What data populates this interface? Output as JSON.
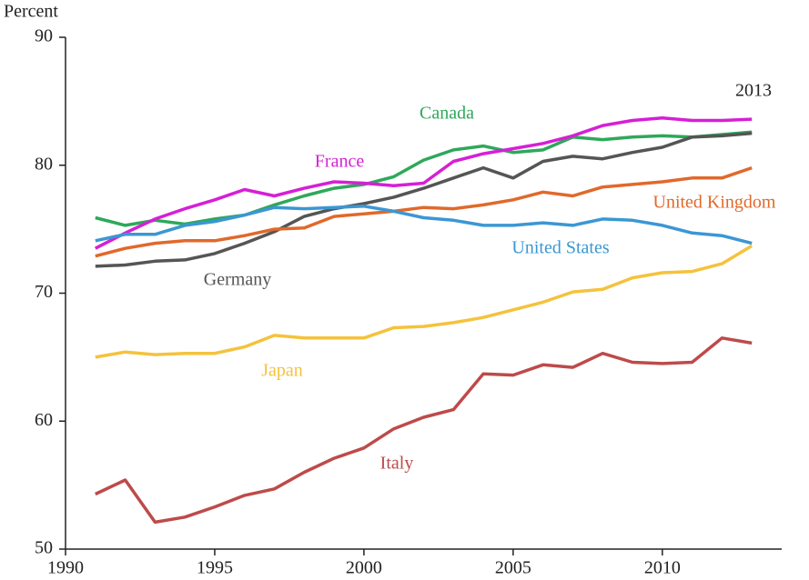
{
  "chart_data": {
    "type": "line",
    "y_label": "Percent",
    "annotation": "2013",
    "x": [
      1991,
      1992,
      1993,
      1994,
      1995,
      1996,
      1997,
      1998,
      1999,
      2000,
      2001,
      2002,
      2003,
      2004,
      2005,
      2006,
      2007,
      2008,
      2009,
      2010,
      2011,
      2012,
      2013
    ],
    "series": [
      {
        "name": "Canada",
        "color": "#2ea85a",
        "values": [
          75.9,
          75.3,
          75.7,
          75.4,
          75.8,
          76.1,
          76.9,
          77.6,
          78.2,
          78.5,
          79.1,
          80.4,
          81.2,
          81.5,
          81.0,
          81.2,
          82.2,
          82.0,
          82.2,
          82.3,
          82.2,
          82.4,
          82.6
        ]
      },
      {
        "name": "France",
        "color": "#d61fd6",
        "values": [
          73.5,
          74.7,
          75.8,
          76.6,
          77.3,
          78.1,
          77.6,
          78.2,
          78.7,
          78.6,
          78.4,
          78.6,
          80.3,
          80.9,
          81.3,
          81.7,
          82.3,
          83.1,
          83.5,
          83.7,
          83.5,
          83.5,
          83.6
        ]
      },
      {
        "name": "Germany",
        "color": "#555555",
        "values": [
          72.1,
          72.2,
          72.5,
          72.6,
          73.1,
          73.9,
          74.8,
          76.0,
          76.6,
          77.0,
          77.5,
          78.2,
          79.0,
          79.8,
          79.0,
          80.3,
          80.7,
          80.5,
          81.0,
          81.4,
          82.2,
          82.3,
          82.5
        ]
      },
      {
        "name": "United Kingdom",
        "color": "#e0692b",
        "values": [
          72.9,
          73.5,
          73.9,
          74.1,
          74.1,
          74.5,
          75.0,
          75.1,
          76.0,
          76.2,
          76.4,
          76.7,
          76.6,
          76.9,
          77.3,
          77.9,
          77.6,
          78.3,
          78.5,
          78.7,
          79.0,
          79.0,
          79.8
        ]
      },
      {
        "name": "United States",
        "color": "#3b97d3",
        "values": [
          74.1,
          74.6,
          74.6,
          75.3,
          75.6,
          76.1,
          76.7,
          76.6,
          76.7,
          76.8,
          76.4,
          75.9,
          75.7,
          75.3,
          75.3,
          75.5,
          75.3,
          75.8,
          75.7,
          75.3,
          74.7,
          74.5,
          73.9
        ]
      },
      {
        "name": "Japan",
        "color": "#f5c23c",
        "values": [
          65.0,
          65.4,
          65.2,
          65.3,
          65.3,
          65.8,
          66.7,
          66.5,
          66.5,
          66.5,
          67.3,
          67.4,
          67.7,
          68.1,
          68.7,
          69.3,
          70.1,
          70.3,
          71.2,
          71.6,
          71.7,
          72.3,
          73.7
        ]
      },
      {
        "name": "Italy",
        "color": "#be4a4a",
        "values": [
          54.3,
          55.4,
          52.1,
          52.5,
          53.3,
          54.2,
          54.7,
          56.0,
          57.1,
          57.9,
          59.4,
          60.3,
          60.9,
          63.7,
          63.6,
          64.4,
          64.2,
          65.3,
          64.6,
          64.5,
          64.6,
          66.5,
          66.1
        ]
      }
    ],
    "xlim": [
      1990,
      2014
    ],
    "xticks": [
      1990,
      1995,
      2000,
      2005,
      2010
    ],
    "ylim": [
      50,
      90
    ],
    "yticks": [
      50,
      60,
      70,
      80,
      90
    ],
    "grid": false
  }
}
